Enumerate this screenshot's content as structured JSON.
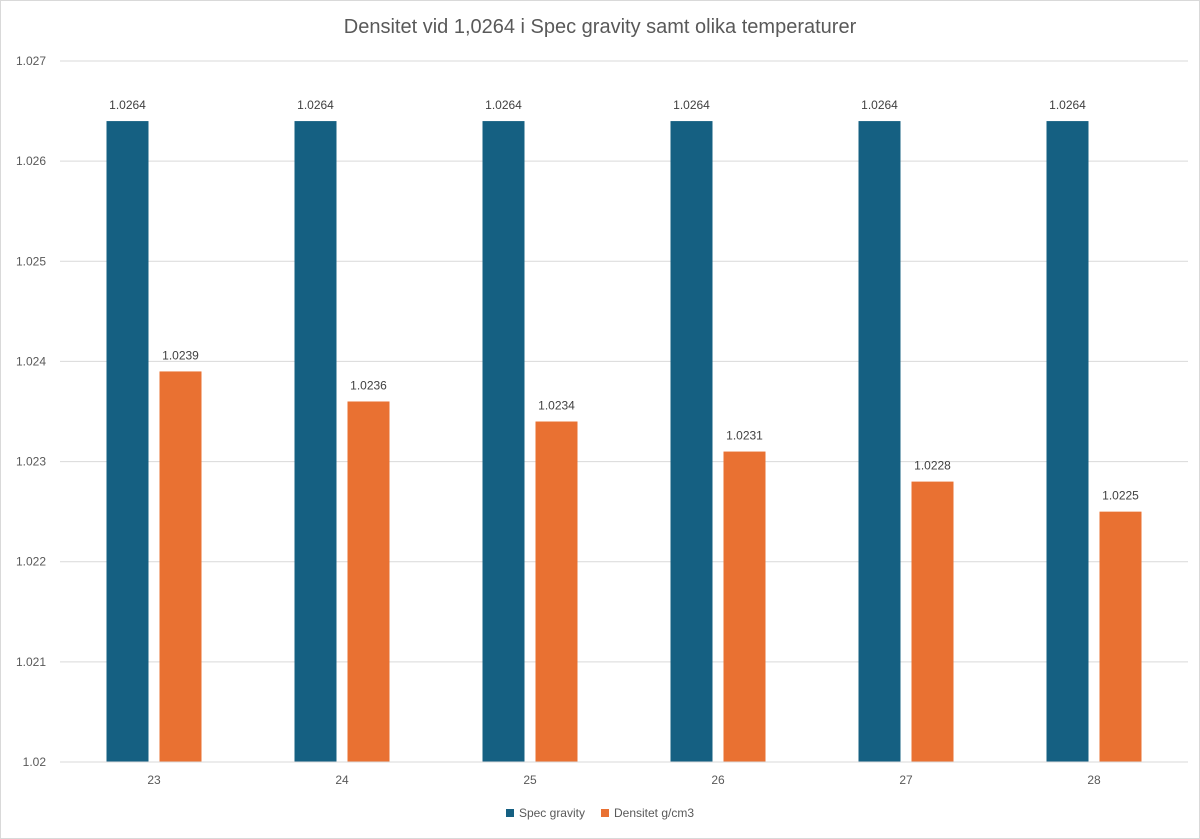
{
  "chart_data": {
    "type": "bar",
    "title": "Densitet vid 1,0264 i Spec gravity samt olika temperaturer",
    "xlabel": "",
    "ylabel": "",
    "categories": [
      "23",
      "24",
      "25",
      "26",
      "27",
      "28"
    ],
    "series": [
      {
        "name": "Spec gravity",
        "color": "#156082",
        "values": [
          1.0264,
          1.0264,
          1.0264,
          1.0264,
          1.0264,
          1.0264
        ],
        "labels": [
          "1.0264",
          "1.0264",
          "1.0264",
          "1.0264",
          "1.0264",
          "1.0264"
        ]
      },
      {
        "name": "Densitet g/cm3",
        "color": "#E97132",
        "values": [
          1.0239,
          1.0236,
          1.0234,
          1.0231,
          1.0228,
          1.0225
        ],
        "labels": [
          "1.0239",
          "1.0236",
          "1.0234",
          "1.0231",
          "1.0228",
          "1.0225"
        ]
      }
    ],
    "ylim": [
      1.02,
      1.027
    ],
    "yticks": [
      "1.02",
      "1.021",
      "1.022",
      "1.023",
      "1.024",
      "1.025",
      "1.026",
      "1.027"
    ],
    "grid": true,
    "legend_position": "bottom"
  }
}
